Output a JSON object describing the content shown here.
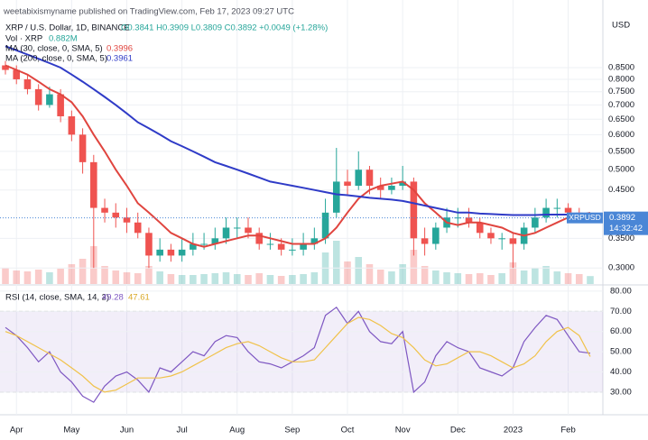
{
  "header": {
    "text": "weetabixismyname published on TradingView.com, Feb 17, 2023 09:27 UTC"
  },
  "chart_data": [
    {
      "type": "candlestick",
      "title": "XRP / U.S. Dollar, 1D, BINANCE",
      "ohlc_label": "O0.3841 H0.3909 L0.3809 C0.3892 +0.0049 (+1.28%)",
      "axis_unit": "USD",
      "symbol_label": "XRPUSD",
      "last_label": "0.3892",
      "countdown": "14:32:42",
      "categories": [
        null,
        "Apr",
        null,
        null,
        null,
        null,
        "May",
        null,
        null,
        null,
        null,
        "Jun",
        null,
        null,
        null,
        null,
        "Jul",
        null,
        null,
        null,
        null,
        "Aug",
        null,
        null,
        null,
        null,
        "Sep",
        null,
        null,
        null,
        null,
        "Oct",
        null,
        null,
        null,
        null,
        "Nov",
        null,
        null,
        null,
        null,
        "Dec",
        null,
        null,
        null,
        null,
        "2023",
        null,
        null,
        null,
        null,
        "Feb",
        null,
        null
      ],
      "open": [
        0.86,
        0.84,
        0.8,
        0.76,
        0.7,
        0.74,
        0.66,
        0.6,
        0.52,
        0.41,
        0.4,
        0.39,
        0.38,
        0.36,
        0.32,
        0.33,
        0.32,
        0.33,
        0.34,
        0.34,
        0.35,
        0.37,
        0.37,
        0.36,
        0.34,
        0.34,
        0.33,
        0.33,
        0.34,
        0.35,
        0.4,
        0.47,
        0.46,
        0.5,
        0.46,
        0.45,
        0.46,
        0.47,
        0.35,
        0.34,
        0.37,
        0.39,
        0.39,
        0.38,
        0.36,
        0.35,
        0.35,
        0.34,
        0.37,
        0.39,
        0.41,
        0.41,
        0.4,
        0.3841
      ],
      "high": [
        0.88,
        0.86,
        0.82,
        0.78,
        0.77,
        0.76,
        0.68,
        0.62,
        0.54,
        0.43,
        0.42,
        0.41,
        0.4,
        0.37,
        0.35,
        0.34,
        0.35,
        0.36,
        0.36,
        0.37,
        0.39,
        0.39,
        0.39,
        0.37,
        0.36,
        0.35,
        0.35,
        0.36,
        0.37,
        0.43,
        0.56,
        0.5,
        0.55,
        0.51,
        0.48,
        0.48,
        0.51,
        0.48,
        0.37,
        0.38,
        0.41,
        0.41,
        0.41,
        0.39,
        0.37,
        0.36,
        0.36,
        0.38,
        0.41,
        0.43,
        0.43,
        0.42,
        0.41,
        0.3909
      ],
      "low": [
        0.82,
        0.78,
        0.74,
        0.68,
        0.69,
        0.64,
        0.58,
        0.49,
        0.3,
        0.38,
        0.37,
        0.36,
        0.35,
        0.3,
        0.31,
        0.31,
        0.31,
        0.32,
        0.33,
        0.33,
        0.34,
        0.35,
        0.35,
        0.33,
        0.33,
        0.32,
        0.32,
        0.32,
        0.33,
        0.34,
        0.39,
        0.44,
        0.45,
        0.44,
        0.43,
        0.44,
        0.45,
        0.32,
        0.32,
        0.33,
        0.36,
        0.37,
        0.37,
        0.35,
        0.34,
        0.33,
        0.3,
        0.33,
        0.36,
        0.38,
        0.39,
        0.38,
        0.38,
        0.3809
      ],
      "close": [
        0.84,
        0.8,
        0.76,
        0.7,
        0.74,
        0.66,
        0.6,
        0.52,
        0.41,
        0.4,
        0.39,
        0.38,
        0.36,
        0.32,
        0.33,
        0.32,
        0.33,
        0.34,
        0.34,
        0.35,
        0.37,
        0.37,
        0.36,
        0.34,
        0.34,
        0.33,
        0.33,
        0.34,
        0.35,
        0.4,
        0.47,
        0.46,
        0.5,
        0.46,
        0.45,
        0.46,
        0.47,
        0.35,
        0.34,
        0.37,
        0.39,
        0.39,
        0.38,
        0.36,
        0.35,
        0.35,
        0.34,
        0.37,
        0.39,
        0.41,
        0.41,
        0.4,
        0.39,
        0.3892
      ],
      "up_color": "#26a69a",
      "down_color": "#ef5350",
      "label_color": "#4a86d6",
      "log_scale": true,
      "ylim": [
        0.276,
        1.1
      ],
      "grid": true,
      "yticks": [
        {
          "value": 0.3,
          "label": "0.3000"
        },
        {
          "value": 0.35,
          "label": "0.3500"
        },
        {
          "value": 0.45,
          "label": "0.4500"
        },
        {
          "value": 0.5,
          "label": "0.5000"
        },
        {
          "value": 0.55,
          "label": "0.5500"
        },
        {
          "value": 0.6,
          "label": "0.6000"
        },
        {
          "value": 0.65,
          "label": "0.6500"
        },
        {
          "value": 0.7,
          "label": "0.7000"
        },
        {
          "value": 0.75,
          "label": "0.7500"
        },
        {
          "value": 0.8,
          "label": "0.8000"
        },
        {
          "value": 0.85,
          "label": "0.8500"
        }
      ],
      "series": [
        {
          "name": "MA (30, close, 0, SMA, 5)",
          "color": "#e0453f",
          "value_label": "0.3996",
          "values": [
            0.86,
            0.84,
            0.82,
            0.79,
            0.76,
            0.74,
            0.71,
            0.66,
            0.6,
            0.55,
            0.5,
            0.46,
            0.42,
            0.4,
            0.38,
            0.36,
            0.35,
            0.34,
            0.335,
            0.34,
            0.345,
            0.35,
            0.355,
            0.355,
            0.35,
            0.345,
            0.34,
            0.34,
            0.34,
            0.35,
            0.37,
            0.4,
            0.43,
            0.45,
            0.46,
            0.465,
            0.47,
            0.45,
            0.42,
            0.4,
            0.38,
            0.375,
            0.38,
            0.38,
            0.375,
            0.37,
            0.36,
            0.355,
            0.36,
            0.37,
            0.38,
            0.39,
            0.395,
            0.3996
          ]
        },
        {
          "name": "MA (200, close, 0, SMA, 5)",
          "color": "#2f3bc7",
          "value_label": "0.3961",
          "values": [
            0.95,
            0.93,
            0.91,
            0.89,
            0.87,
            0.85,
            0.82,
            0.79,
            0.76,
            0.73,
            0.7,
            0.67,
            0.64,
            0.62,
            0.6,
            0.58,
            0.565,
            0.55,
            0.535,
            0.52,
            0.51,
            0.5,
            0.49,
            0.48,
            0.47,
            0.465,
            0.46,
            0.455,
            0.45,
            0.445,
            0.44,
            0.438,
            0.435,
            0.432,
            0.43,
            0.428,
            0.425,
            0.42,
            0.415,
            0.41,
            0.405,
            0.4,
            0.4,
            0.398,
            0.397,
            0.396,
            0.395,
            0.395,
            0.395,
            0.396,
            0.396,
            0.396,
            0.396,
            0.3961
          ]
        }
      ]
    },
    {
      "type": "volume",
      "name": "Vol · XRP",
      "value_label": "0.882M",
      "color": "#26a69a",
      "ylim": [
        0,
        8
      ],
      "values": [
        1.8,
        1.5,
        1.4,
        1.6,
        1.3,
        1.7,
        2.2,
        2.8,
        4.2,
        2.0,
        1.5,
        1.3,
        1.2,
        2.0,
        1.4,
        1.1,
        1.0,
        1.0,
        1.1,
        1.2,
        1.3,
        1.1,
        1.0,
        1.2,
        1.0,
        0.9,
        1.0,
        1.1,
        1.3,
        3.5,
        4.8,
        2.5,
        3.0,
        2.2,
        1.6,
        1.4,
        2.2,
        3.8,
        2.0,
        1.5,
        1.3,
        1.2,
        1.1,
        1.2,
        1.0,
        1.2,
        2.4,
        1.5,
        1.8,
        2.0,
        1.4,
        1.2,
        1.1,
        0.882
      ]
    },
    {
      "type": "line",
      "title": "RSI (14, close, SMA, 14, 2)",
      "ylim": [
        19.7,
        82.2
      ],
      "band": [
        30,
        70
      ],
      "band_color": "#7e57c2",
      "grid": true,
      "yticks": [
        {
          "value": 30,
          "label": "30.00"
        },
        {
          "value": 40,
          "label": "40.00"
        },
        {
          "value": 50,
          "label": "50.00"
        },
        {
          "value": 60,
          "label": "60.00"
        },
        {
          "value": 70,
          "label": "70.00"
        },
        {
          "value": 80,
          "label": "80.00"
        }
      ],
      "series": [
        {
          "color": "#7e57c2",
          "value_label": "49.28",
          "values": [
            62,
            58,
            52,
            45,
            50,
            40,
            35,
            28,
            25,
            33,
            38,
            40,
            36,
            30,
            42,
            40,
            45,
            50,
            48,
            55,
            58,
            57,
            50,
            45,
            44,
            42,
            45,
            48,
            52,
            68,
            72,
            64,
            70,
            60,
            55,
            54,
            60,
            30,
            35,
            48,
            55,
            52,
            50,
            42,
            40,
            38,
            42,
            55,
            62,
            68,
            66,
            58,
            50,
            49.28
          ]
        },
        {
          "color": "#f0c24a",
          "value_label": "47.61",
          "values": [
            60,
            58,
            55,
            52,
            49,
            46,
            42,
            38,
            33,
            30,
            31,
            34,
            37,
            37,
            37,
            38,
            40,
            43,
            46,
            49,
            52,
            54,
            55,
            53,
            50,
            47,
            45,
            45,
            46,
            52,
            58,
            64,
            67,
            66,
            63,
            59,
            57,
            52,
            46,
            43,
            44,
            47,
            50,
            50,
            48,
            45,
            42,
            44,
            48,
            55,
            60,
            62,
            58,
            47.61
          ]
        }
      ]
    }
  ]
}
